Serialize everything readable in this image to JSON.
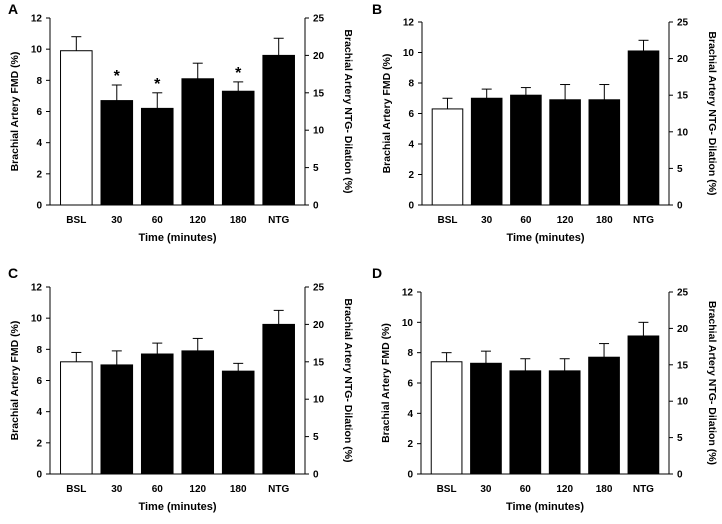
{
  "chart_data": [
    {
      "type": "bar",
      "panel": "A",
      "categories": [
        "BSL",
        "30",
        "60",
        "120",
        "180",
        "NTG"
      ],
      "values": [
        9.9,
        6.7,
        6.2,
        8.1,
        7.3,
        9.6
      ],
      "errors": [
        0.9,
        1.0,
        1.0,
        1.0,
        0.6,
        1.1
      ],
      "bar_fill": [
        "white",
        "black",
        "black",
        "black",
        "black",
        "black"
      ],
      "significant": [
        false,
        true,
        true,
        false,
        true,
        false
      ],
      "sig_symbol": "*",
      "xlabel": "Time (minutes)",
      "ylabel_left": "Brachial Artery FMD (%)",
      "ylabel_right": "Brachial Artery NTG- Dilation (%)",
      "ylim_left": [
        0,
        12
      ],
      "yticks_left": [
        0,
        2,
        4,
        6,
        8,
        10,
        12
      ],
      "ylim_right": [
        0,
        25
      ],
      "yticks_right": [
        0,
        5,
        10,
        15,
        20,
        25
      ]
    },
    {
      "type": "bar",
      "panel": "B",
      "categories": [
        "BSL",
        "30",
        "60",
        "120",
        "180",
        "NTG"
      ],
      "values": [
        6.3,
        7.0,
        7.2,
        6.9,
        6.9,
        10.1
      ],
      "errors": [
        0.7,
        0.6,
        0.5,
        1.0,
        1.0,
        0.7
      ],
      "bar_fill": [
        "white",
        "black",
        "black",
        "black",
        "black",
        "black"
      ],
      "significant": [
        false,
        false,
        false,
        false,
        false,
        false
      ],
      "sig_symbol": "*",
      "xlabel": "Time (minutes)",
      "ylabel_left": "Brachial Artery FMD (%)",
      "ylabel_right": "Brachial Artery NTG- Dilation (%)",
      "ylim_left": [
        0,
        12
      ],
      "yticks_left": [
        0,
        2,
        4,
        6,
        8,
        10,
        12
      ],
      "ylim_right": [
        0,
        25
      ],
      "yticks_right": [
        0,
        5,
        10,
        15,
        20,
        25
      ]
    },
    {
      "type": "bar",
      "panel": "C",
      "categories": [
        "BSL",
        "30",
        "60",
        "120",
        "180",
        "NTG"
      ],
      "values": [
        7.2,
        7.0,
        7.7,
        7.9,
        6.6,
        9.6
      ],
      "errors": [
        0.6,
        0.9,
        0.7,
        0.8,
        0.5,
        0.9
      ],
      "bar_fill": [
        "white",
        "black",
        "black",
        "black",
        "black",
        "black"
      ],
      "significant": [
        false,
        false,
        false,
        false,
        false,
        false
      ],
      "sig_symbol": "*",
      "xlabel": "Time (minutes)",
      "ylabel_left": "Brachial Artery FMD (%)",
      "ylabel_right": "Brachial Artery NTG- Dilation (%)",
      "ylim_left": [
        0,
        12
      ],
      "yticks_left": [
        0,
        2,
        4,
        6,
        8,
        10,
        12
      ],
      "ylim_right": [
        0,
        25
      ],
      "yticks_right": [
        0,
        5,
        10,
        15,
        20,
        25
      ]
    },
    {
      "type": "bar",
      "panel": "D",
      "categories": [
        "BSL",
        "30",
        "60",
        "120",
        "180",
        "NTG"
      ],
      "values": [
        7.4,
        7.3,
        6.8,
        6.8,
        7.7,
        9.1
      ],
      "errors": [
        0.6,
        0.8,
        0.8,
        0.8,
        0.9,
        0.9
      ],
      "bar_fill": [
        "white",
        "black",
        "black",
        "black",
        "black",
        "black"
      ],
      "significant": [
        false,
        false,
        false,
        false,
        false,
        false
      ],
      "sig_symbol": "*",
      "xlabel": "Time (minutes)",
      "ylabel_left": "Brachial Artery FMD (%)",
      "ylabel_right": "Brachial Artery NTG- Dilation (%)",
      "ylim_left": [
        0,
        12
      ],
      "yticks_left": [
        0,
        2,
        4,
        6,
        8,
        10,
        12
      ],
      "ylim_right": [
        0,
        25
      ],
      "yticks_right": [
        0,
        5,
        10,
        15,
        20,
        25
      ]
    }
  ]
}
